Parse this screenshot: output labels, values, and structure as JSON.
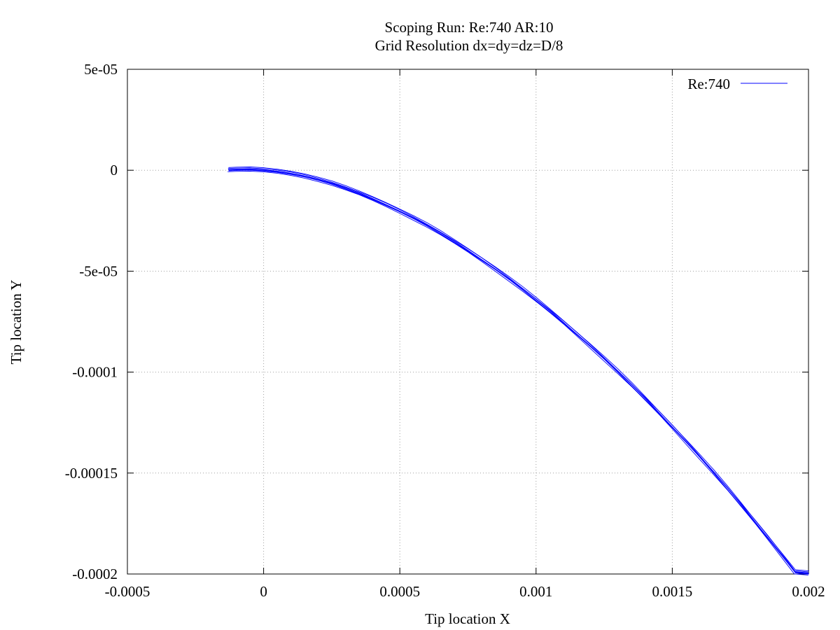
{
  "chart_data": {
    "type": "line",
    "title": "Scoping Run: Re:740  AR:10",
    "subtitle": "Grid Resolution dx=dy=dz=D/8",
    "xlabel": "Tip location X",
    "ylabel": "Tip location Y",
    "xlim": [
      -0.0005,
      0.002
    ],
    "ylim": [
      -0.0002,
      5e-05
    ],
    "x_ticks": [
      -0.0005,
      0,
      0.0005,
      0.001,
      0.0015,
      0.002
    ],
    "x_tick_labels": [
      "-0.0005",
      "0",
      "0.0005",
      "0.001",
      "0.0015",
      "0.002"
    ],
    "y_ticks": [
      5e-05,
      0,
      -5e-05,
      -0.0001,
      -0.00015,
      -0.0002
    ],
    "y_tick_labels": [
      "5e-05",
      "0",
      "-5e-05",
      "-0.0001",
      "-0.00015",
      "-0.0002"
    ],
    "grid": true,
    "legend_position": "top-right",
    "series": [
      {
        "name": "Re:740",
        "color": "#0000ff",
        "x": [
          -0.00013,
          -0.0001,
          -5e-05,
          0,
          5e-05,
          0.0001,
          0.00015,
          0.0002,
          0.00025,
          0.0003,
          0.00035,
          0.0004,
          0.00045,
          0.0005,
          0.00055,
          0.0006,
          0.00065,
          0.0007,
          0.00075,
          0.0008,
          0.00085,
          0.0009,
          0.00095,
          0.001,
          0.00105,
          0.0011,
          0.00115,
          0.0012,
          0.00125,
          0.0013,
          0.00135,
          0.0014,
          0.00145,
          0.0015,
          0.00155,
          0.0016,
          0.00165,
          0.0017,
          0.00175,
          0.0018,
          0.00185,
          0.0019,
          0.00195,
          0.002
        ],
        "y": [
          3e-07,
          5e-07,
          6e-07,
          2e-07,
          -5e-07,
          -1.5e-06,
          -2.8e-06,
          -4.5e-06,
          -6.4e-06,
          -8.7e-06,
          -1.12e-05,
          -1.4e-05,
          -1.7e-05,
          -2.02e-05,
          -2.36e-05,
          -2.72e-05,
          -3.11e-05,
          -3.53e-05,
          -3.96e-05,
          -4.41e-05,
          -4.88e-05,
          -5.37e-05,
          -5.88e-05,
          -6.41e-05,
          -6.96e-05,
          -7.52e-05,
          -8.11e-05,
          -8.71e-05,
          -9.33e-05,
          -9.97e-05,
          -0.0001062,
          -0.000113,
          -0.0001199,
          -0.000127,
          -0.0001343,
          -0.0001418,
          -0.0001494,
          -0.0001572,
          -0.0001652,
          -0.0001734,
          -0.0001817,
          -0.0001902,
          -0.0001989,
          -0.0001995
        ]
      }
    ]
  }
}
